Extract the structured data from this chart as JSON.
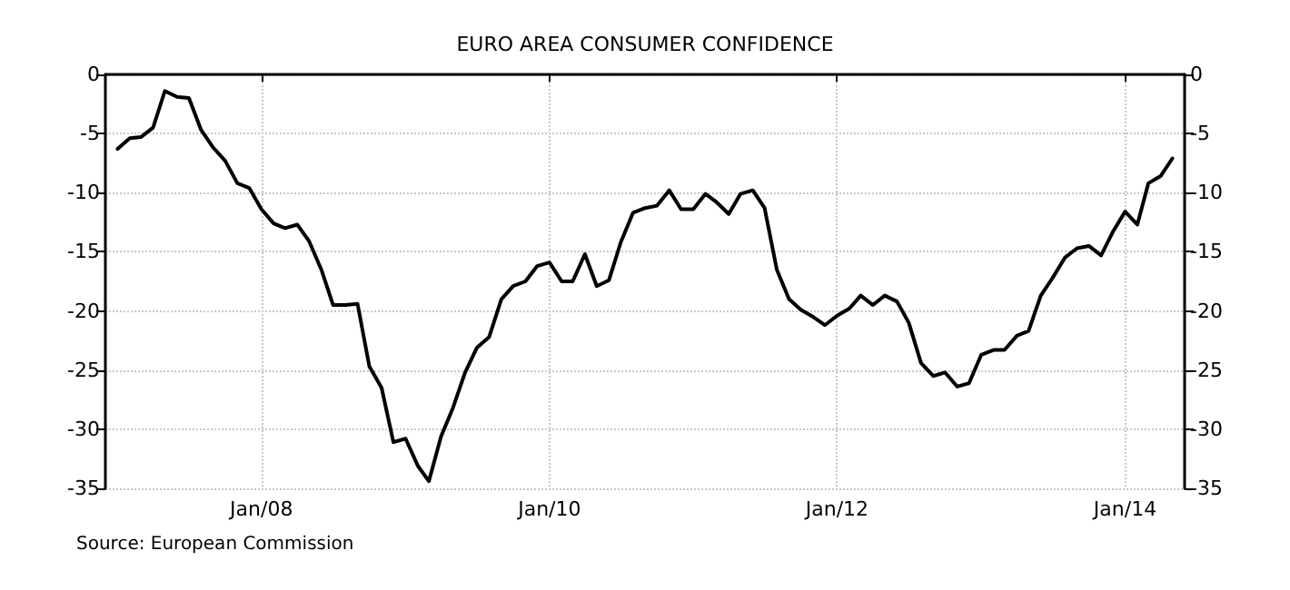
{
  "chart_data": {
    "type": "line",
    "title": "EURO AREA CONSUMER CONFIDENCE",
    "x": [
      "2007-01",
      "2007-02",
      "2007-03",
      "2007-04",
      "2007-05",
      "2007-06",
      "2007-07",
      "2007-08",
      "2007-09",
      "2007-10",
      "2007-11",
      "2007-12",
      "2008-01",
      "2008-02",
      "2008-03",
      "2008-04",
      "2008-05",
      "2008-06",
      "2008-07",
      "2008-08",
      "2008-09",
      "2008-10",
      "2008-11",
      "2008-12",
      "2009-01",
      "2009-02",
      "2009-03",
      "2009-04",
      "2009-05",
      "2009-06",
      "2009-07",
      "2009-08",
      "2009-09",
      "2009-10",
      "2009-11",
      "2009-12",
      "2010-01",
      "2010-02",
      "2010-03",
      "2010-04",
      "2010-05",
      "2010-06",
      "2010-07",
      "2010-08",
      "2010-09",
      "2010-10",
      "2010-11",
      "2010-12",
      "2011-01",
      "2011-02",
      "2011-03",
      "2011-04",
      "2011-05",
      "2011-06",
      "2011-07",
      "2011-08",
      "2011-09",
      "2011-10",
      "2011-11",
      "2011-12",
      "2012-01",
      "2012-02",
      "2012-03",
      "2012-04",
      "2012-05",
      "2012-06",
      "2012-07",
      "2012-08",
      "2012-09",
      "2012-10",
      "2012-11",
      "2012-12",
      "2013-01",
      "2013-02",
      "2013-03",
      "2013-04",
      "2013-05",
      "2013-06",
      "2013-07",
      "2013-08",
      "2013-09",
      "2013-10",
      "2013-11",
      "2013-12",
      "2014-01",
      "2014-02",
      "2014-03",
      "2014-04",
      "2014-05"
    ],
    "series": [
      {
        "color": "#000000",
        "values": [
          -6.3,
          -5.4,
          -5.3,
          -4.5,
          -1.4,
          -1.9,
          -2.0,
          -4.7,
          -6.2,
          -7.3,
          -9.2,
          -9.6,
          -11.4,
          -12.6,
          -13.0,
          -12.7,
          -14.1,
          -16.5,
          -19.5,
          -19.5,
          -19.4,
          -24.7,
          -26.5,
          -31.1,
          -30.8,
          -33.1,
          -34.4,
          -30.6,
          -28.2,
          -25.2,
          -23.1,
          -22.2,
          -19.0,
          -17.9,
          -17.5,
          -16.2,
          -15.9,
          -17.5,
          -17.5,
          -15.2,
          -17.9,
          -17.4,
          -14.2,
          -11.7,
          -11.3,
          -11.1,
          -9.8,
          -11.4,
          -11.4,
          -10.1,
          -10.8,
          -11.8,
          -10.1,
          -9.8,
          -11.3,
          -16.5,
          -19.0,
          -19.9,
          -20.5,
          -21.2,
          -20.4,
          -19.8,
          -18.7,
          -19.5,
          -18.7,
          -19.2,
          -21.0,
          -24.4,
          -25.5,
          -25.2,
          -26.4,
          -26.1,
          -23.7,
          -23.3,
          -23.3,
          -22.1,
          -21.7,
          -18.7,
          -17.2,
          -15.5,
          -14.7,
          -14.5,
          -15.3,
          -13.3,
          -11.6,
          -12.7,
          -9.2,
          -8.6,
          -7.1
        ]
      }
    ],
    "xlim": [
      "2006-12",
      "2014-06"
    ],
    "xticks": [
      {
        "value": "2008-01",
        "label": "Jan/08"
      },
      {
        "value": "2010-01",
        "label": "Jan/10"
      },
      {
        "value": "2012-01",
        "label": "Jan/12"
      },
      {
        "value": "2014-01",
        "label": "Jan/14"
      }
    ],
    "ylim": [
      -35,
      0
    ],
    "yticks": [
      -35,
      -30,
      -25,
      -20,
      -15,
      -10,
      -5,
      0
    ],
    "y2lim": [
      -35,
      0
    ],
    "y2ticks": [
      -35,
      -30,
      -25,
      -20,
      -15,
      -10,
      -5,
      0
    ],
    "grid": true,
    "marker": "none",
    "line_style": "solid",
    "annotations": [
      "Source: European Commission"
    ]
  }
}
